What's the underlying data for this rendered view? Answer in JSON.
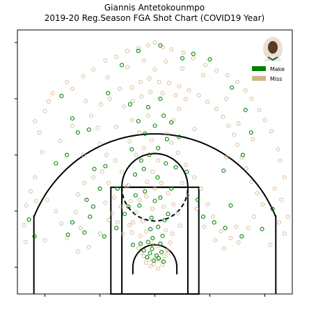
{
  "chart_data": {
    "type": "scatter",
    "title": "Giannis Antetokounmpo",
    "subtitle": "2019-20 Reg.Season FGA Shot Chart (COVID19 Year)",
    "x_range": [
      -250,
      250
    ],
    "y_range": [
      -47.5,
      422.5
    ],
    "legend_placement": "top-right",
    "grid": false,
    "colors": {
      "make": "#008000",
      "miss": "#d2b48c",
      "court": "#000000"
    },
    "legend": [
      {
        "key": "make",
        "label": "Make"
      },
      {
        "key": "miss",
        "label": "Miss"
      }
    ],
    "series": [
      {
        "name": "Make",
        "points": [
          [
            -229,
            85
          ],
          [
            -219,
            55
          ],
          [
            -158,
            58
          ],
          [
            -150,
            80
          ],
          [
            -128,
            62
          ],
          [
            -118,
            90
          ],
          [
            -112,
            108
          ],
          [
            -92,
            55
          ],
          [
            -70,
            70
          ],
          [
            -55,
            95
          ],
          [
            -48,
            108
          ],
          [
            -40,
            40
          ],
          [
            -35,
            128
          ],
          [
            -26,
            42
          ],
          [
            -20,
            30
          ],
          [
            -14,
            18
          ],
          [
            -9,
            25
          ],
          [
            -5,
            33
          ],
          [
            -2,
            12
          ],
          [
            3,
            21
          ],
          [
            7,
            16
          ],
          [
            12,
            27
          ],
          [
            16,
            10
          ],
          [
            -12,
            45
          ],
          [
            10,
            42
          ],
          [
            -4,
            52
          ],
          [
            14,
            56
          ],
          [
            -8,
            68
          ],
          [
            6,
            72
          ],
          [
            18,
            84
          ],
          [
            -6,
            88
          ],
          [
            24,
            95
          ],
          [
            -28,
            110
          ],
          [
            -18,
            135
          ],
          [
            0,
            118
          ],
          [
            10,
            124
          ],
          [
            30,
            140
          ],
          [
            -36,
            165
          ],
          [
            -20,
            175
          ],
          [
            5,
            160
          ],
          [
            20,
            185
          ],
          [
            -10,
            200
          ],
          [
            6,
            212
          ],
          [
            22,
            228
          ],
          [
            -18,
            238
          ],
          [
            0,
            252
          ],
          [
            16,
            270
          ],
          [
            -12,
            285
          ],
          [
            10,
            300
          ],
          [
            -25,
            190
          ],
          [
            38,
            178
          ],
          [
            -42,
            210
          ],
          [
            44,
            232
          ],
          [
            -30,
            260
          ],
          [
            30,
            258
          ],
          [
            -45,
            290
          ],
          [
            -180,
            185
          ],
          [
            -160,
            200
          ],
          [
            -150,
            265
          ],
          [
            -140,
            240
          ],
          [
            -170,
            305
          ],
          [
            -120,
            245
          ],
          [
            -85,
            310
          ],
          [
            -60,
            360
          ],
          [
            -30,
            385
          ],
          [
            10,
            395
          ],
          [
            50,
            372
          ],
          [
            70,
            380
          ],
          [
            100,
            370
          ],
          [
            140,
            320
          ],
          [
            165,
            280
          ],
          [
            175,
            240
          ],
          [
            160,
            200
          ],
          [
            125,
            172
          ],
          [
            138,
            110
          ],
          [
            128,
            70
          ],
          [
            158,
            55
          ],
          [
            195,
            68
          ],
          [
            214,
            104
          ],
          [
            58,
            170
          ],
          [
            -68,
            140
          ],
          [
            -90,
            180
          ],
          [
            -110,
            175
          ],
          [
            78,
            120
          ],
          [
            88,
            90
          ],
          [
            108,
            80
          ],
          [
            -100,
            140
          ],
          [
            -124,
            120
          ]
        ]
      },
      {
        "name": "Miss",
        "points": [
          [
            -235,
            45
          ],
          [
            -238,
            75
          ],
          [
            -234,
            110
          ],
          [
            -216,
            118
          ],
          [
            -218,
            160
          ],
          [
            -205,
            205
          ],
          [
            -210,
            240
          ],
          [
            -218,
            260
          ],
          [
            -200,
            278
          ],
          [
            -193,
            295
          ],
          [
            -186,
            310
          ],
          [
            -160,
            330
          ],
          [
            -150,
            318
          ],
          [
            -130,
            340
          ],
          [
            -112,
            352
          ],
          [
            -90,
            368
          ],
          [
            -70,
            375
          ],
          [
            -50,
            385
          ],
          [
            -30,
            390
          ],
          [
            -12,
            395
          ],
          [
            0,
            400
          ],
          [
            15,
            392
          ],
          [
            30,
            388
          ],
          [
            52,
            382
          ],
          [
            70,
            372
          ],
          [
            92,
            360
          ],
          [
            112,
            350
          ],
          [
            132,
            342
          ],
          [
            150,
            330
          ],
          [
            165,
            315
          ],
          [
            176,
            300
          ],
          [
            190,
            280
          ],
          [
            200,
            262
          ],
          [
            212,
            242
          ],
          [
            224,
            210
          ],
          [
            228,
            190
          ],
          [
            236,
            160
          ],
          [
            230,
            120
          ],
          [
            242,
            90
          ],
          [
            236,
            60
          ],
          [
            -196,
            120
          ],
          [
            -180,
            100
          ],
          [
            -170,
            78
          ],
          [
            -160,
            52
          ],
          [
            -144,
            98
          ],
          [
            -140,
            130
          ],
          [
            -128,
            150
          ],
          [
            -112,
            160
          ],
          [
            -96,
            170
          ],
          [
            -84,
            150
          ],
          [
            -78,
            96
          ],
          [
            -68,
            80
          ],
          [
            -58,
            60
          ],
          [
            -46,
            75
          ],
          [
            -44,
            118
          ],
          [
            -52,
            145
          ],
          [
            -60,
            170
          ],
          [
            -72,
            190
          ],
          [
            -88,
            200
          ],
          [
            -100,
            220
          ],
          [
            -104,
            248
          ],
          [
            -116,
            270
          ],
          [
            -98,
            290
          ],
          [
            -82,
            300
          ],
          [
            -64,
            318
          ],
          [
            -42,
            320
          ],
          [
            -26,
            330
          ],
          [
            -10,
            336
          ],
          [
            8,
            330
          ],
          [
            26,
            328
          ],
          [
            44,
            322
          ],
          [
            62,
            315
          ],
          [
            80,
            306
          ],
          [
            96,
            294
          ],
          [
            112,
            282
          ],
          [
            124,
            268
          ],
          [
            134,
            252
          ],
          [
            144,
            236
          ],
          [
            150,
            218
          ],
          [
            158,
            195
          ],
          [
            166,
            176
          ],
          [
            176,
            152
          ],
          [
            186,
            132
          ],
          [
            196,
            112
          ],
          [
            180,
            90
          ],
          [
            170,
            70
          ],
          [
            152,
            44
          ],
          [
            138,
            52
          ],
          [
            120,
            64
          ],
          [
            106,
            90
          ],
          [
            96,
            112
          ],
          [
            84,
            140
          ],
          [
            72,
            160
          ],
          [
            56,
            182
          ],
          [
            42,
            204
          ],
          [
            30,
            222
          ],
          [
            22,
            238
          ],
          [
            34,
            262
          ],
          [
            44,
            282
          ],
          [
            56,
            300
          ],
          [
            38,
            306
          ],
          [
            14,
            310
          ],
          [
            -8,
            312
          ],
          [
            -24,
            304
          ],
          [
            -40,
            296
          ],
          [
            -56,
            286
          ],
          [
            -42,
            262
          ],
          [
            -28,
            240
          ],
          [
            -46,
            224
          ],
          [
            -34,
            200
          ],
          [
            -20,
            212
          ],
          [
            -6,
            226
          ],
          [
            6,
            190
          ],
          [
            -4,
            170
          ],
          [
            12,
            150
          ],
          [
            -14,
            152
          ],
          [
            24,
            132
          ],
          [
            -28,
            120
          ],
          [
            34,
            112
          ],
          [
            -34,
            98
          ],
          [
            42,
            96
          ],
          [
            -40,
            80
          ],
          [
            46,
            74
          ],
          [
            -42,
            62
          ],
          [
            32,
            60
          ],
          [
            -26,
            56
          ],
          [
            28,
            44
          ],
          [
            -30,
            34
          ],
          [
            22,
            30
          ],
          [
            -20,
            20
          ],
          [
            18,
            20
          ],
          [
            -16,
            8
          ],
          [
            14,
            4
          ],
          [
            -8,
            2
          ],
          [
            6,
            -2
          ],
          [
            -2,
            6
          ],
          [
            2,
            14
          ],
          [
            -10,
            14
          ],
          [
            10,
            12
          ],
          [
            -24,
            26
          ],
          [
            24,
            26
          ],
          [
            -6,
            40
          ],
          [
            6,
            38
          ],
          [
            -16,
            64
          ],
          [
            20,
            66
          ],
          [
            -22,
            82
          ],
          [
            -4,
            104
          ],
          [
            16,
            108
          ],
          [
            -16,
            126
          ],
          [
            0,
            140
          ],
          [
            -48,
            146
          ],
          [
            50,
            150
          ],
          [
            60,
            128
          ],
          [
            -62,
            108
          ],
          [
            -74,
            124
          ],
          [
            76,
            104
          ],
          [
            -84,
            84
          ],
          [
            90,
            72
          ],
          [
            -100,
            60
          ],
          [
            110,
            48
          ],
          [
            -120,
            36
          ],
          [
            126,
            34
          ],
          [
            -140,
            28
          ],
          [
            -200,
            48
          ],
          [
            210,
            40
          ],
          [
            226,
            80
          ],
          [
            -226,
            135
          ],
          [
            218,
            140
          ],
          [
            -172,
            225
          ],
          [
            178,
            228
          ],
          [
            -150,
            252
          ],
          [
            152,
            256
          ],
          [
            -126,
            296
          ],
          [
            130,
            300
          ],
          [
            -86,
            338
          ],
          [
            88,
            342
          ],
          [
            -50,
            356
          ],
          [
            50,
            354
          ],
          [
            -20,
            368
          ],
          [
            20,
            366
          ],
          [
            0,
            352
          ],
          [
            -130,
            200
          ],
          [
            130,
            196
          ],
          [
            -70,
            250
          ],
          [
            72,
            246
          ],
          [
            -12,
            270
          ],
          [
            -90,
            115
          ],
          [
            -135,
            70
          ],
          [
            148,
            72
          ]
        ]
      }
    ]
  }
}
